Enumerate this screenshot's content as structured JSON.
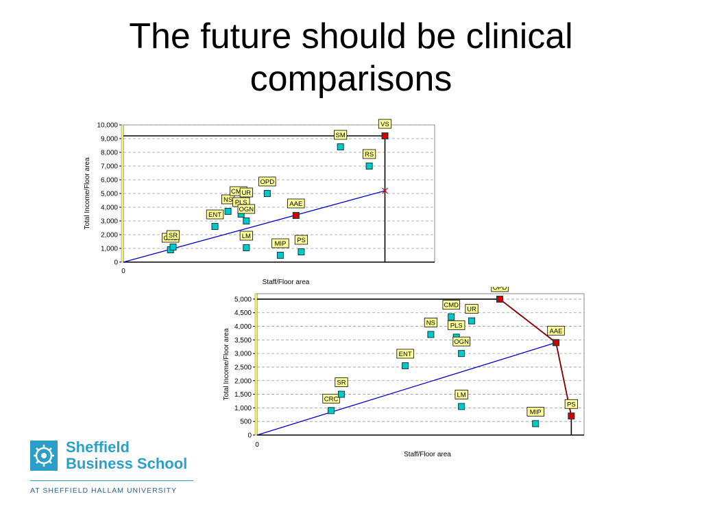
{
  "slide": {
    "title_line1": "The future should be clinical",
    "title_line2": "comparisons"
  },
  "logo": {
    "line1": "Sheffield",
    "line2": "Business School",
    "subtitle": "AT SHEFFIELD HALLAM UNIVERSITY",
    "color": "#2aa0c8"
  },
  "colors": {
    "point_fill": "#00c8c8",
    "highlight_fill": "#cc0000",
    "label_bg": "#ffff99",
    "line_blue": "#0000cc",
    "frontier_red": "#8b0000",
    "plot_bg": "#ffffff",
    "axis_strip": "#ffff66"
  },
  "chart_data": [
    {
      "type": "scatter",
      "xlabel": "Staff/Floor area",
      "ylabel": "Total Income/Floor area",
      "xlim": [
        0,
        11.9
      ],
      "ylim": [
        0,
        10000
      ],
      "y_ticks": [
        "0",
        "1,000",
        "2,000",
        "3,000",
        "4,000",
        "5,000",
        "6,000",
        "7,000",
        "8,000",
        "9,000",
        "10,000"
      ],
      "x_tick_label": "0",
      "grid": true,
      "points": [
        {
          "label": "CRC",
          "x": 1.8,
          "y": 900,
          "highlight": false
        },
        {
          "label": "SR",
          "x": 1.9,
          "y": 1100,
          "highlight": false
        },
        {
          "label": "ENT",
          "x": 3.5,
          "y": 2600,
          "highlight": false
        },
        {
          "label": "NS",
          "x": 4.0,
          "y": 3700,
          "highlight": false
        },
        {
          "label": "CMD",
          "x": 4.4,
          "y": 4300,
          "highlight": false
        },
        {
          "label": "UR",
          "x": 4.7,
          "y": 4200,
          "highlight": false
        },
        {
          "label": "PLS",
          "x": 4.5,
          "y": 3500,
          "highlight": false
        },
        {
          "label": "OGN",
          "x": 4.7,
          "y": 3000,
          "highlight": false
        },
        {
          "label": "OPD",
          "x": 5.5,
          "y": 5000,
          "highlight": false
        },
        {
          "label": "LM",
          "x": 4.7,
          "y": 1050,
          "highlight": false
        },
        {
          "label": "AAE",
          "x": 6.6,
          "y": 3400,
          "highlight": true
        },
        {
          "label": "MIP",
          "x": 6.0,
          "y": 500,
          "highlight": false
        },
        {
          "label": "PS",
          "x": 6.8,
          "y": 750,
          "highlight": false
        },
        {
          "label": "SM",
          "x": 8.3,
          "y": 8400,
          "highlight": false
        },
        {
          "label": "RS",
          "x": 9.4,
          "y": 7000,
          "highlight": false
        },
        {
          "label": "VS",
          "x": 10.0,
          "y": 9200,
          "highlight": true
        }
      ],
      "reference_line": {
        "from": [
          0,
          0
        ],
        "to": [
          10.0,
          5200
        ]
      },
      "frontier": [
        [
          0,
          9200
        ],
        [
          10.0,
          9200
        ],
        [
          10.0,
          0
        ]
      ]
    },
    {
      "type": "scatter",
      "xlabel": "Staff/Floor area",
      "ylabel": "Total Income/Floor area",
      "xlim": [
        0,
        12.8
      ],
      "ylim": [
        0,
        5200
      ],
      "y_ticks": [
        "0",
        "500",
        "1,000",
        "1,500",
        "2,000",
        "2,500",
        "3,000",
        "3,500",
        "4,000",
        "4,500",
        "5,000"
      ],
      "x_tick_label": "0",
      "grid": true,
      "points": [
        {
          "label": "CRC",
          "x": 2.9,
          "y": 900,
          "highlight": false
        },
        {
          "label": "SR",
          "x": 3.3,
          "y": 1500,
          "highlight": false
        },
        {
          "label": "ENT",
          "x": 5.8,
          "y": 2550,
          "highlight": false
        },
        {
          "label": "NS",
          "x": 6.8,
          "y": 3700,
          "highlight": false
        },
        {
          "label": "CMD",
          "x": 7.6,
          "y": 4350,
          "highlight": false
        },
        {
          "label": "UR",
          "x": 8.4,
          "y": 4200,
          "highlight": false
        },
        {
          "label": "PLS",
          "x": 7.8,
          "y": 3600,
          "highlight": false
        },
        {
          "label": "OGN",
          "x": 8.0,
          "y": 3000,
          "highlight": false
        },
        {
          "label": "LM",
          "x": 8.0,
          "y": 1050,
          "highlight": false
        },
        {
          "label": "MIP",
          "x": 10.9,
          "y": 420,
          "highlight": false
        },
        {
          "label": "OPD",
          "x": 9.5,
          "y": 5000,
          "highlight": true
        },
        {
          "label": "AAE",
          "x": 11.7,
          "y": 3400,
          "highlight": true
        },
        {
          "label": "PS",
          "x": 12.3,
          "y": 700,
          "highlight": true
        }
      ],
      "reference_line": {
        "from": [
          0,
          0
        ],
        "to": [
          11.7,
          3400
        ]
      },
      "frontier": [
        [
          0,
          5000
        ],
        [
          9.5,
          5000
        ],
        [
          11.7,
          3400
        ],
        [
          12.3,
          700
        ],
        [
          12.3,
          0
        ]
      ]
    }
  ]
}
